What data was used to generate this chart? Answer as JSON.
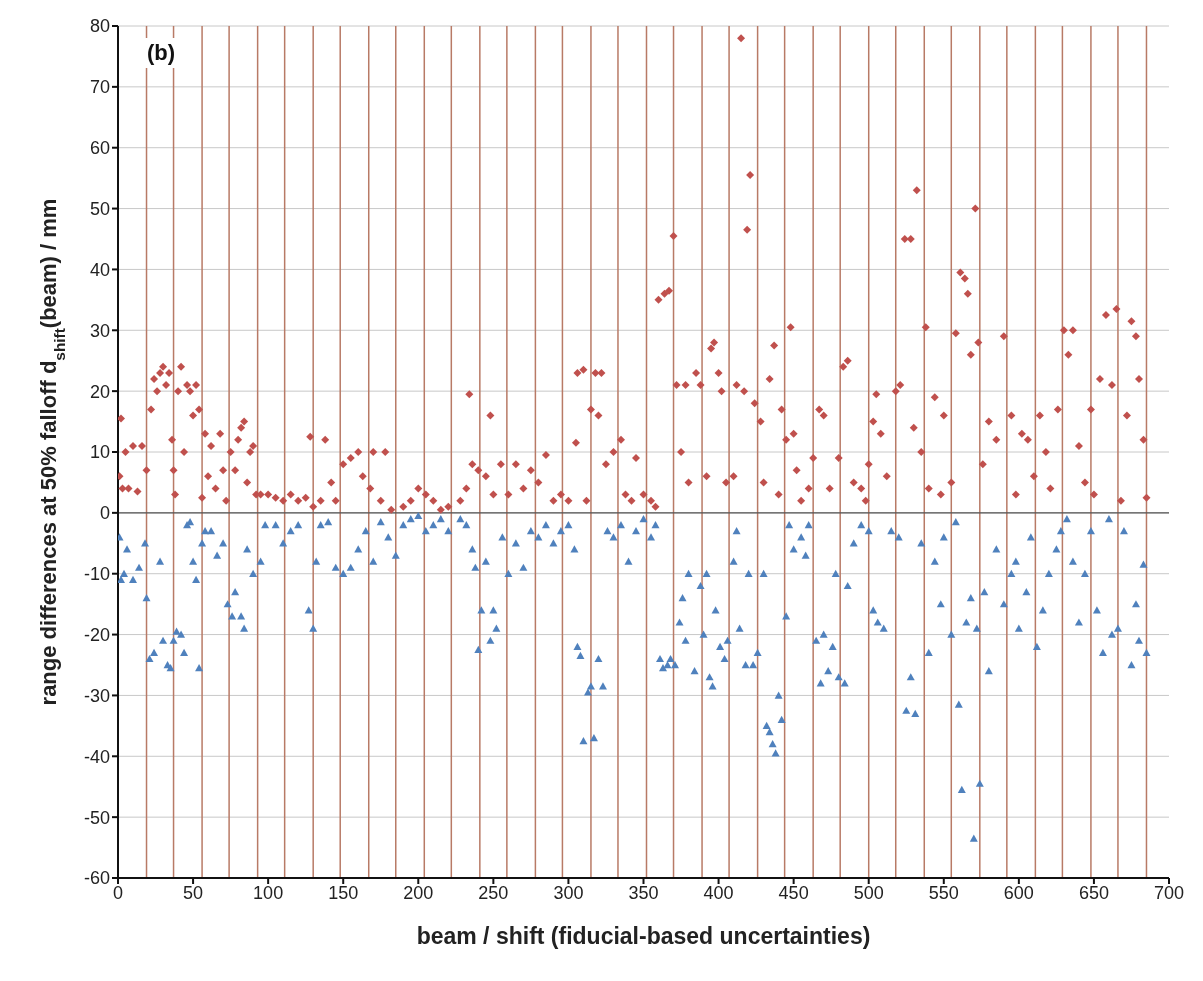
{
  "chart_data": {
    "type": "scatter",
    "xlabel": "beam / shift (fiducial-based uncertainties)",
    "ylabel": "range differences at 50% falloff d$_{shift}$(beam) / mm",
    "annotations": [
      "(b)"
    ],
    "xlim": [
      0,
      700
    ],
    "xticks": [
      0,
      50,
      100,
      150,
      200,
      250,
      300,
      350,
      400,
      450,
      500,
      550,
      600,
      650,
      700
    ],
    "ylim": [
      -60,
      80
    ],
    "yticks": [
      -60,
      -50,
      -40,
      -30,
      -20,
      -10,
      0,
      10,
      20,
      30,
      40,
      50,
      60,
      70,
      80
    ],
    "grid": "y",
    "legend": false,
    "ref_lines": [
      {
        "axis": "x",
        "value": 19,
        "color": "#b87a66"
      },
      {
        "axis": "x",
        "value": 37,
        "color": "#b87a66"
      },
      {
        "axis": "x",
        "value": 56,
        "color": "#b87a66"
      },
      {
        "axis": "x",
        "value": 74,
        "color": "#b87a66"
      },
      {
        "axis": "x",
        "value": 93,
        "color": "#b87a66"
      },
      {
        "axis": "x",
        "value": 111,
        "color": "#b87a66"
      },
      {
        "axis": "x",
        "value": 130,
        "color": "#b87a66"
      },
      {
        "axis": "x",
        "value": 148,
        "color": "#b87a66"
      },
      {
        "axis": "x",
        "value": 167,
        "color": "#b87a66"
      },
      {
        "axis": "x",
        "value": 185,
        "color": "#b87a66"
      },
      {
        "axis": "x",
        "value": 204,
        "color": "#b87a66"
      },
      {
        "axis": "x",
        "value": 222,
        "color": "#b87a66"
      },
      {
        "axis": "x",
        "value": 241,
        "color": "#b87a66"
      },
      {
        "axis": "x",
        "value": 259,
        "color": "#b87a66"
      },
      {
        "axis": "x",
        "value": 278,
        "color": "#b87a66"
      },
      {
        "axis": "x",
        "value": 296,
        "color": "#b87a66"
      },
      {
        "axis": "x",
        "value": 315,
        "color": "#b87a66"
      },
      {
        "axis": "x",
        "value": 333,
        "color": "#b87a66"
      },
      {
        "axis": "x",
        "value": 352,
        "color": "#b87a66"
      },
      {
        "axis": "x",
        "value": 370,
        "color": "#b87a66"
      },
      {
        "axis": "x",
        "value": 389,
        "color": "#b87a66"
      },
      {
        "axis": "x",
        "value": 407,
        "color": "#b87a66"
      },
      {
        "axis": "x",
        "value": 426,
        "color": "#b87a66"
      },
      {
        "axis": "x",
        "value": 444,
        "color": "#b87a66"
      },
      {
        "axis": "x",
        "value": 463,
        "color": "#b87a66"
      },
      {
        "axis": "x",
        "value": 481,
        "color": "#b87a66"
      },
      {
        "axis": "x",
        "value": 500,
        "color": "#b87a66"
      },
      {
        "axis": "x",
        "value": 518,
        "color": "#b87a66"
      },
      {
        "axis": "x",
        "value": 537,
        "color": "#b87a66"
      },
      {
        "axis": "x",
        "value": 555,
        "color": "#b87a66"
      },
      {
        "axis": "x",
        "value": 574,
        "color": "#b87a66"
      },
      {
        "axis": "x",
        "value": 592,
        "color": "#b87a66"
      },
      {
        "axis": "x",
        "value": 611,
        "color": "#b87a66"
      },
      {
        "axis": "x",
        "value": 629,
        "color": "#b87a66"
      },
      {
        "axis": "x",
        "value": 648,
        "color": "#b87a66"
      },
      {
        "axis": "x",
        "value": 666,
        "color": "#b87a66"
      },
      {
        "axis": "x",
        "value": 685,
        "color": "#b87a66"
      }
    ],
    "series": [
      {
        "color": "#c0504d",
        "marker": "diamond",
        "x": [
          1,
          2,
          3,
          5,
          7,
          10,
          13,
          16,
          19,
          22,
          24,
          26,
          28,
          30,
          32,
          34,
          36,
          37,
          38,
          40,
          42,
          44,
          46,
          48,
          50,
          52,
          54,
          56,
          58,
          60,
          62,
          65,
          68,
          70,
          72,
          75,
          78,
          80,
          82,
          84,
          86,
          88,
          90,
          92,
          95,
          100,
          105,
          110,
          115,
          120,
          125,
          128,
          130,
          135,
          138,
          142,
          145,
          150,
          155,
          160,
          163,
          168,
          170,
          175,
          178,
          182,
          190,
          195,
          200,
          205,
          210,
          215,
          220,
          228,
          232,
          234,
          236,
          240,
          245,
          248,
          250,
          255,
          260,
          265,
          270,
          275,
          280,
          285,
          290,
          295,
          300,
          305,
          306,
          310,
          312,
          315,
          318,
          320,
          322,
          325,
          330,
          335,
          338,
          342,
          345,
          350,
          355,
          358,
          360,
          364,
          367,
          370,
          372,
          375,
          378,
          380,
          385,
          388,
          392,
          395,
          397,
          400,
          402,
          405,
          410,
          412,
          415,
          417,
          419,
          421,
          424,
          428,
          430,
          434,
          437,
          440,
          442,
          445,
          448,
          450,
          452,
          455,
          460,
          463,
          467,
          470,
          474,
          480,
          483,
          486,
          490,
          495,
          498,
          500,
          503,
          505,
          508,
          512,
          518,
          521,
          524,
          528,
          530,
          532,
          535,
          538,
          540,
          544,
          548,
          550,
          555,
          558,
          561,
          564,
          566,
          568,
          571,
          573,
          576,
          580,
          585,
          590,
          595,
          598,
          602,
          606,
          610,
          614,
          618,
          621,
          626,
          630,
          633,
          636,
          640,
          644,
          648,
          650,
          654,
          658,
          662,
          665,
          668,
          672,
          675,
          678,
          680,
          683,
          685
        ],
        "values": [
          6,
          15.5,
          4,
          10,
          4,
          11,
          3.5,
          11,
          7,
          17,
          22,
          20,
          23,
          24,
          21,
          23,
          12,
          7,
          3,
          20,
          24,
          10,
          21,
          20,
          16,
          21,
          17,
          2.5,
          13,
          6,
          11,
          4,
          13,
          7,
          2,
          10,
          7,
          12,
          14,
          15,
          5,
          10,
          11,
          3,
          3,
          3,
          2.5,
          2,
          3,
          2,
          2.5,
          12.5,
          1,
          2,
          12,
          5,
          2,
          8,
          9,
          10,
          6,
          4,
          10,
          2,
          10,
          0.5,
          1,
          2,
          4,
          3,
          2,
          0.5,
          1,
          2,
          4,
          19.5,
          8,
          7,
          6,
          16,
          3,
          8,
          3,
          8,
          4,
          7,
          5,
          9.5,
          2,
          3,
          2,
          11.5,
          23,
          23.5,
          2,
          17,
          23,
          16,
          23,
          8,
          10,
          12,
          3,
          2,
          9,
          3,
          2,
          1,
          35,
          36,
          36.5,
          45.5,
          21,
          10,
          21,
          5,
          23,
          21,
          6,
          27,
          28,
          23,
          20,
          5,
          6,
          21,
          78,
          20,
          46.5,
          55.5,
          18,
          15,
          5,
          22,
          27.5,
          3,
          17,
          12,
          30.5,
          13,
          7,
          2,
          4,
          9,
          17,
          16,
          4,
          9,
          24,
          25,
          5,
          4,
          2,
          8,
          15,
          19.5,
          13,
          6,
          20,
          21,
          45,
          45,
          14,
          53,
          10,
          30.5,
          4,
          19,
          3,
          16,
          5,
          29.5,
          39.5,
          38.5,
          36,
          26,
          50,
          28,
          8,
          15,
          12,
          29,
          16,
          3,
          13,
          12,
          6,
          16,
          10,
          4,
          17,
          30,
          26,
          30,
          11,
          5,
          17,
          3,
          22,
          32.5,
          21,
          33.5,
          2,
          16,
          31.5,
          29,
          22,
          12,
          2.5
        ]
      },
      {
        "color": "#4f81bd",
        "marker": "triangle",
        "x": [
          1,
          2,
          4,
          6,
          10,
          14,
          18,
          19,
          21,
          24,
          28,
          30,
          33,
          35,
          37,
          39,
          42,
          44,
          46,
          48,
          50,
          52,
          54,
          56,
          58,
          62,
          66,
          70,
          73,
          76,
          78,
          82,
          84,
          86,
          90,
          95,
          98,
          105,
          110,
          115,
          120,
          127,
          130,
          132,
          135,
          140,
          145,
          150,
          155,
          160,
          165,
          170,
          175,
          180,
          185,
          190,
          195,
          200,
          205,
          210,
          215,
          220,
          228,
          232,
          236,
          238,
          240,
          242,
          245,
          248,
          250,
          252,
          256,
          260,
          265,
          270,
          275,
          280,
          285,
          290,
          295,
          300,
          304,
          306,
          308,
          310,
          313,
          315,
          317,
          320,
          323,
          326,
          330,
          335,
          340,
          345,
          350,
          355,
          358,
          361,
          363,
          366,
          368,
          371,
          374,
          376,
          378,
          380,
          384,
          388,
          390,
          392,
          394,
          396,
          398,
          401,
          404,
          406,
          410,
          412,
          414,
          418,
          420,
          423,
          426,
          430,
          432,
          434,
          436,
          438,
          440,
          442,
          445,
          447,
          450,
          455,
          458,
          460,
          465,
          468,
          470,
          473,
          476,
          478,
          480,
          484,
          486,
          490,
          495,
          500,
          503,
          506,
          510,
          515,
          520,
          525,
          528,
          531,
          535,
          540,
          544,
          548,
          550,
          555,
          558,
          560,
          562,
          565,
          568,
          570,
          572,
          574,
          577,
          580,
          585,
          590,
          595,
          598,
          600,
          605,
          608,
          612,
          616,
          620,
          625,
          628,
          632,
          636,
          640,
          644,
          648,
          652,
          656,
          660,
          662,
          666,
          670,
          675,
          678,
          680,
          683,
          685
        ],
        "values": [
          -4,
          -11,
          -10,
          -6,
          -11,
          -9,
          -5,
          -14,
          -24,
          -23,
          -8,
          -21,
          -25,
          -25.5,
          -21,
          -19.5,
          -20,
          -23,
          -2,
          -1.5,
          -8,
          -11,
          -25.5,
          -5,
          -3,
          -3,
          -7,
          -5,
          -15,
          -17,
          -13,
          -17,
          -19,
          -6,
          -10,
          -8,
          -2,
          -2,
          -5,
          -3,
          -2,
          -16,
          -19,
          -8,
          -2,
          -1.5,
          -9,
          -10,
          -9,
          -6,
          -3,
          -8,
          -1.5,
          -4,
          -7,
          -2,
          -1,
          -0.5,
          -3,
          -2,
          -1,
          -3,
          -1,
          -2,
          -6,
          -9,
          -22.5,
          -16,
          -8,
          -21,
          -16,
          -19,
          -4,
          -10,
          -5,
          -9,
          -3,
          -4,
          -2,
          -5,
          -3,
          -2,
          -6,
          -22,
          -23.5,
          -37.5,
          -29.5,
          -28.5,
          -37,
          -24,
          -28.5,
          -3,
          -4,
          -2,
          -8,
          -3,
          -1,
          -4,
          -2,
          -24,
          -25.5,
          -25,
          -24,
          -25,
          -18,
          -14,
          -21,
          -10,
          -26,
          -12,
          -20,
          -10,
          -27,
          -28.5,
          -16,
          -22,
          -24,
          -21,
          -8,
          -3,
          -19,
          -25,
          -10,
          -25,
          -23,
          -10,
          -35,
          -36,
          -38,
          -39.5,
          -30,
          -34,
          -17,
          -2,
          -6,
          -4,
          -7,
          -2,
          -21,
          -28,
          -20,
          -26,
          -22,
          -10,
          -27,
          -28,
          -12,
          -5,
          -2,
          -3,
          -16,
          -18,
          -19,
          -3,
          -4,
          -32.5,
          -27,
          -33,
          -5,
          -23,
          -8,
          -15,
          -4,
          -20,
          -1.5,
          -31.5,
          -45.5,
          -18,
          -14,
          -53.5,
          -19,
          -44.5,
          -13,
          -26,
          -6,
          -15,
          -10,
          -8,
          -19,
          -13,
          -4,
          -22,
          -16,
          -10,
          -6,
          -3,
          -1,
          -8,
          -18,
          -10,
          -3,
          -16,
          -23,
          -1,
          -20,
          -19,
          -3,
          -25,
          -15,
          -21,
          -8.5,
          -23
        ]
      }
    ]
  }
}
